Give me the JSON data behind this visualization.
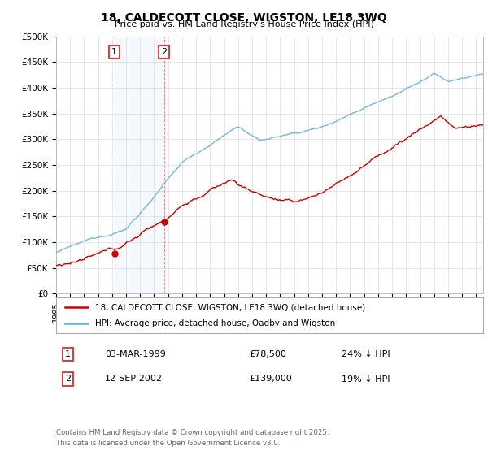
{
  "title": "18, CALDECOTT CLOSE, WIGSTON, LE18 3WQ",
  "subtitle": "Price paid vs. HM Land Registry's House Price Index (HPI)",
  "ylabel_ticks": [
    "£0",
    "£50K",
    "£100K",
    "£150K",
    "£200K",
    "£250K",
    "£300K",
    "£350K",
    "£400K",
    "£450K",
    "£500K"
  ],
  "ytick_values": [
    0,
    50000,
    100000,
    150000,
    200000,
    250000,
    300000,
    350000,
    400000,
    450000,
    500000
  ],
  "ylim": [
    0,
    500000
  ],
  "xlim_start": 1995.0,
  "xlim_end": 2025.5,
  "hpi_color": "#6baed6",
  "price_color": "#cc0000",
  "purchase1_date": 1999.17,
  "purchase1_price": 78500,
  "purchase2_date": 2002.71,
  "purchase2_price": 139000,
  "shaded_region_start": 1999.17,
  "shaded_region_end": 2002.71,
  "legend_line1": "18, CALDECOTT CLOSE, WIGSTON, LE18 3WQ (detached house)",
  "legend_line2": "HPI: Average price, detached house, Oadby and Wigston",
  "table_row1": [
    "1",
    "03-MAR-1999",
    "£78,500",
    "24% ↓ HPI"
  ],
  "table_row2": [
    "2",
    "12-SEP-2002",
    "£139,000",
    "19% ↓ HPI"
  ],
  "footer": "Contains HM Land Registry data © Crown copyright and database right 2025.\nThis data is licensed under the Open Government Licence v3.0.",
  "background_color": "#ffffff",
  "grid_color": "#dddddd"
}
